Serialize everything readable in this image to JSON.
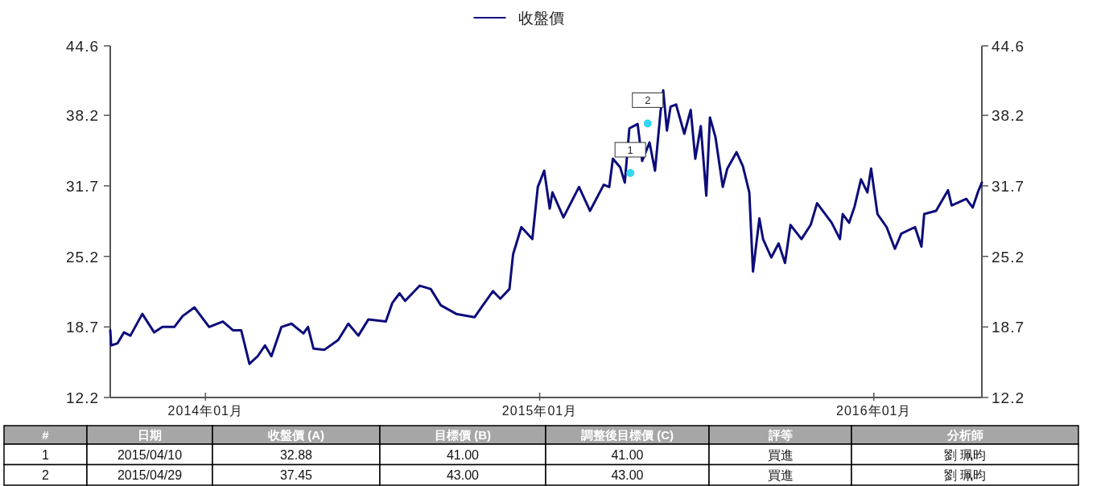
{
  "chart_data": [
    {
      "type": "line",
      "legend": "top",
      "xlim": [
        "2013-09-19",
        "2016-04-28"
      ],
      "xticks": [
        {
          "value": "2014-01-01",
          "label": "2014年01月"
        },
        {
          "value": "2015-01-01",
          "label": "2015年01月"
        },
        {
          "value": "2016-01-01",
          "label": "2016年01月"
        }
      ],
      "ylim": [
        12.2,
        44.6
      ],
      "yticks": [
        12.2,
        18.7,
        25.2,
        31.7,
        38.2,
        44.6
      ],
      "y2lim": [
        12.2,
        44.6
      ],
      "y2ticks": [
        12.2,
        18.7,
        25.2,
        31.7,
        38.2,
        44.6
      ],
      "series": [
        {
          "name": "收盤價",
          "color": "#0c0c7a",
          "x": [
            "2013-09-19",
            "2013-09-20",
            "2013-09-27",
            "2013-10-04",
            "2013-10-11",
            "2013-10-24",
            "2013-11-06",
            "2013-11-15",
            "2013-11-28",
            "2013-12-07",
            "2013-12-20",
            "2014-01-05",
            "2014-01-20",
            "2014-01-31",
            "2014-02-09",
            "2014-02-18",
            "2014-02-27",
            "2014-03-07",
            "2014-03-14",
            "2014-03-25",
            "2014-04-05",
            "2014-04-18",
            "2014-04-23",
            "2014-04-29",
            "2014-05-11",
            "2014-05-26",
            "2014-06-06",
            "2014-06-17",
            "2014-06-28",
            "2014-07-17",
            "2014-07-24",
            "2014-08-01",
            "2014-08-07",
            "2014-08-23",
            "2014-09-04",
            "2014-09-15",
            "2014-10-02",
            "2014-10-22",
            "2014-10-31",
            "2014-11-11",
            "2014-11-19",
            "2014-11-29",
            "2014-12-03",
            "2014-12-12",
            "2014-12-24",
            "2014-12-30",
            "2015-01-06",
            "2015-01-12",
            "2015-01-15",
            "2015-01-27",
            "2015-02-13",
            "2015-02-25",
            "2015-03-12",
            "2015-03-18",
            "2015-03-22",
            "2015-03-30",
            "2015-04-04",
            "2015-04-09",
            "2015-04-18",
            "2015-04-23",
            "2015-05-01",
            "2015-05-07",
            "2015-05-13",
            "2015-05-16",
            "2015-05-20",
            "2015-05-24",
            "2015-05-30",
            "2015-06-08",
            "2015-06-15",
            "2015-06-20",
            "2015-06-26",
            "2015-07-02",
            "2015-07-06",
            "2015-07-12",
            "2015-07-20",
            "2015-07-25",
            "2015-08-04",
            "2015-08-11",
            "2015-08-18",
            "2015-08-22",
            "2015-08-29",
            "2015-09-02",
            "2015-09-11",
            "2015-09-19",
            "2015-09-26",
            "2015-10-02",
            "2015-10-14",
            "2015-10-24",
            "2015-10-31",
            "2015-11-16",
            "2015-11-25",
            "2015-11-28",
            "2015-12-05",
            "2015-12-11",
            "2015-12-18",
            "2015-12-25",
            "2015-12-29",
            "2016-01-05",
            "2016-01-15",
            "2016-01-24",
            "2016-01-31",
            "2016-02-15",
            "2016-02-22",
            "2016-02-25",
            "2016-03-09",
            "2016-03-22",
            "2016-03-26",
            "2016-04-11",
            "2016-04-18",
            "2016-04-24",
            "2016-04-28"
          ],
          "values": [
            18.4,
            17.0,
            17.2,
            18.2,
            17.9,
            19.9,
            18.2,
            18.7,
            18.7,
            19.7,
            20.5,
            18.7,
            19.2,
            18.4,
            18.4,
            15.3,
            16.0,
            17.0,
            16.0,
            18.7,
            19.0,
            18.1,
            18.7,
            16.7,
            16.6,
            17.5,
            19.0,
            17.9,
            19.4,
            19.2,
            20.9,
            21.8,
            21.1,
            22.5,
            22.2,
            20.7,
            19.9,
            19.6,
            20.7,
            22.0,
            21.3,
            22.2,
            25.4,
            27.9,
            26.8,
            31.6,
            33.1,
            29.6,
            31.1,
            28.8,
            31.6,
            29.4,
            31.8,
            31.6,
            34.2,
            33.4,
            32.0,
            37.0,
            37.4,
            34.0,
            35.7,
            33.1,
            38.5,
            40.5,
            36.8,
            39.0,
            39.2,
            36.5,
            38.7,
            34.2,
            37.2,
            30.8,
            38.0,
            36.2,
            31.6,
            33.3,
            34.8,
            33.5,
            31.1,
            23.8,
            28.7,
            26.8,
            25.1,
            26.4,
            24.6,
            28.1,
            26.8,
            28.1,
            30.1,
            28.3,
            26.8,
            29.1,
            28.3,
            29.8,
            32.3,
            31.1,
            33.3,
            29.1,
            27.9,
            25.9,
            27.3,
            27.9,
            26.1,
            29.1,
            29.4,
            31.3,
            29.9,
            30.5,
            29.7,
            31.2,
            32.0
          ]
        },
        {
          "type": "scatter",
          "marker": "circle",
          "color": "#33d6f0",
          "x": [
            "2015-04-10",
            "2015-04-29"
          ],
          "values": [
            32.88,
            37.45
          ]
        }
      ],
      "annotations": [
        {
          "text": "1",
          "x": "2015-04-10",
          "y": 32.88
        },
        {
          "text": "2",
          "x": "2015-04-29",
          "y": 37.45
        }
      ]
    },
    {
      "type": "other",
      "categories": [
        "#",
        "日期",
        "收盤價 (A)",
        "目標價 (B)",
        "調整後目標價 (C)",
        "評等",
        "分析師"
      ],
      "cell_labels": [
        [
          "1",
          "2015/04/10",
          "32.88",
          "41.00",
          "41.00",
          "買進",
          "劉 珮昀"
        ],
        [
          "2",
          "2015/04/29",
          "37.45",
          "43.00",
          "43.00",
          "買進",
          "劉 珮昀"
        ]
      ]
    }
  ]
}
